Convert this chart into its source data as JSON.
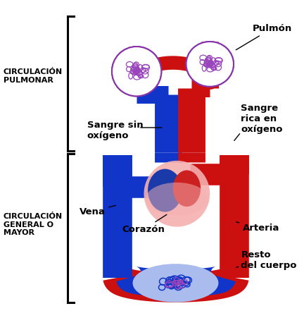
{
  "bg_color": "#ffffff",
  "labels": {
    "pulmonar": "CIRCULACIÓN\nPULMONAR",
    "general": "CIRCULACIÓN\nGENERAL O\nMAYOR",
    "pulmon": "Pulmón",
    "sangre_sin": "Sangre sin\noxígeno",
    "sangre_rica": "Sangre\nrica en\noxígeno",
    "vena": "Vena",
    "corazon": "Corazón",
    "arteria": "Arteria",
    "resto": "Resto\ndel cuerpo"
  },
  "blue": "#1035c8",
  "red": "#cc1010",
  "pink": "#f5b0b0",
  "heart_blue": "#1a3aaa",
  "heart_red": "#cc2020",
  "lung_bg": "#ffffff",
  "lung_edge": "#8833aa",
  "lung_mesh": "#9944bb",
  "bracket_color": "#000000",
  "text_color": "#000000",
  "label_fs": 8,
  "annot_fs": 9.5
}
